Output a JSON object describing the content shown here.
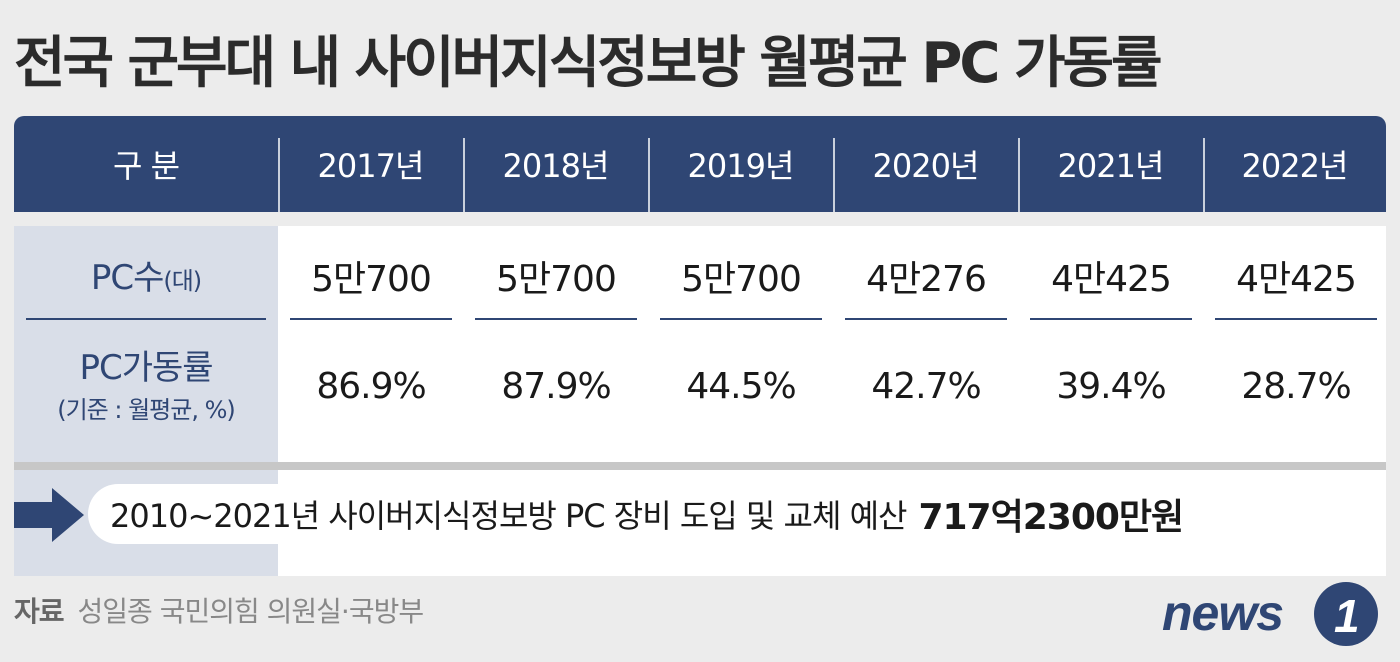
{
  "title": "전국 군부대 내 사이버지식정보방 월평균 PC 가동률",
  "table": {
    "header": [
      "구 분",
      "2017년",
      "2018년",
      "2019년",
      "2020년",
      "2021년",
      "2022년"
    ],
    "rows": [
      {
        "label_main": "PC수",
        "label_unit": "(대)",
        "values": [
          "5만700",
          "5만700",
          "5만700",
          "4만276",
          "4만425",
          "4만425"
        ]
      },
      {
        "label_main": "PC가동률",
        "label_sub": "(기준 : 월평균, %)",
        "values": [
          "86.9%",
          "87.9%",
          "44.5%",
          "42.7%",
          "39.4%",
          "28.7%"
        ]
      }
    ]
  },
  "banner": {
    "text": "2010~2021년 사이버지식정보방 PC 장비 도입 및 교체 예산",
    "amount": "717억2300만원"
  },
  "source": {
    "label": "자료",
    "text": "성일종 국민의힘 의원실·국방부"
  },
  "logo": {
    "text": "news",
    "mark": "1"
  },
  "colors": {
    "header_bg": "#2f4674",
    "label_bg": "#d9dee8",
    "label_text": "#2f4674",
    "page_bg": "#ececec"
  }
}
